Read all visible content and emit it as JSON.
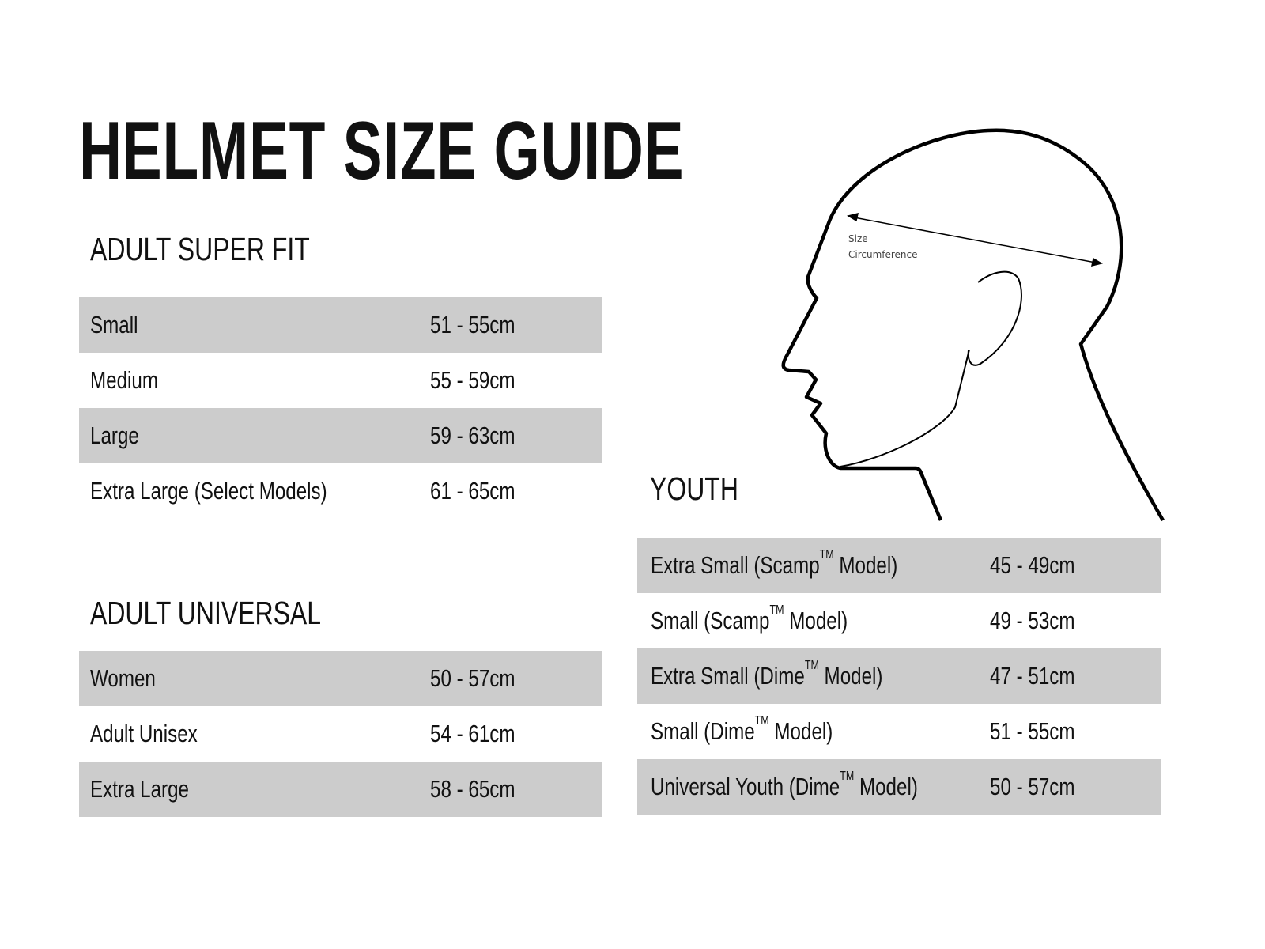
{
  "title": "HELMET SIZE GUIDE",
  "adult_super_fit": {
    "heading": "ADULT SUPER FIT",
    "rows": [
      {
        "label": "Small",
        "size": "51 - 55cm"
      },
      {
        "label": "Medium",
        "size": "55 - 59cm"
      },
      {
        "label": "Large",
        "size": "59 - 63cm"
      },
      {
        "label": "Extra Large (Select Models)",
        "size": "61 - 65cm"
      }
    ]
  },
  "adult_universal": {
    "heading": "ADULT UNIVERSAL",
    "rows": [
      {
        "label": "Women",
        "size": "50 - 57cm"
      },
      {
        "label": "Adult Unisex",
        "size": "54 - 61cm"
      },
      {
        "label": "Extra Large",
        "size": "58 - 65cm"
      }
    ]
  },
  "youth": {
    "heading": "YOUTH",
    "rows": [
      {
        "pre": "Extra Small (Scamp",
        "tm": "TM",
        "post": " Model)",
        "size": "45 - 49cm"
      },
      {
        "pre": "Small (Scamp",
        "tm": "TM",
        "post": " Model)",
        "size": "49 - 53cm"
      },
      {
        "pre": "Extra Small (Dime",
        "tm": "TM",
        "post": " Model)",
        "size": "47 - 51cm"
      },
      {
        "pre": "Small (Dime",
        "tm": "TM",
        "post": " Model)",
        "size": "51 - 55cm"
      },
      {
        "pre": "Universal Youth (Dime",
        "tm": "TM",
        "post": " Model)",
        "size": "50 - 57cm"
      }
    ]
  },
  "diagram": {
    "label_line1": "Size",
    "label_line2": "Circumference"
  },
  "colors": {
    "row_shade": "#cccccc",
    "text": "#111111"
  }
}
